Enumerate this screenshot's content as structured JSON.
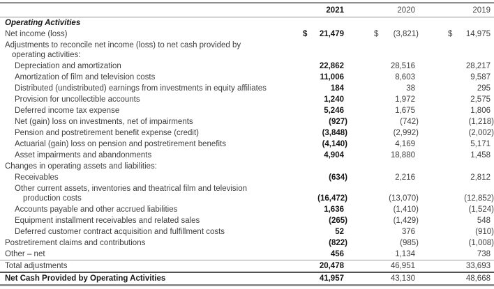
{
  "document": {
    "title": "Operating Activities section of consolidated statement of cash flows",
    "currency_symbol": "$",
    "colors": {
      "text": "#3e3e3e",
      "bold_text": "#161616",
      "rule_gray": "#8e8e8e",
      "rule_dark": "#525252",
      "background": "#ffffff"
    },
    "columns": [
      {
        "label": "2021",
        "bold": true
      },
      {
        "label": "2020",
        "bold": false
      },
      {
        "label": "2019",
        "bold": false
      }
    ],
    "rows": [
      {
        "name": "operating-activities-heading",
        "lines": [
          "Operating Activities"
        ],
        "indent": 0,
        "style": "section",
        "values": null
      },
      {
        "name": "net-income-row",
        "lines": [
          "Net income (loss)"
        ],
        "indent": 0,
        "dollar": true,
        "values": [
          "21,479",
          "(3,821)",
          "14,975"
        ]
      },
      {
        "name": "adjustments-heading",
        "lines": [
          "Adjustments to reconcile net income (loss) to net cash provided by",
          "operating activities:"
        ],
        "indent": 0,
        "values": null
      },
      {
        "lines": [
          "Depreciation and amortization"
        ],
        "indent": 1,
        "values": [
          "22,862",
          "28,516",
          "28,217"
        ]
      },
      {
        "lines": [
          "Amortization of film and television costs"
        ],
        "indent": 1,
        "values": [
          "11,006",
          "8,603",
          "9,587"
        ]
      },
      {
        "lines": [
          "Distributed (undistributed) earnings from investments in equity affiliates"
        ],
        "indent": 1,
        "values": [
          "184",
          "38",
          "295"
        ]
      },
      {
        "lines": [
          "Provision for uncollectible accounts"
        ],
        "indent": 1,
        "values": [
          "1,240",
          "1,972",
          "2,575"
        ]
      },
      {
        "lines": [
          "Deferred income tax expense"
        ],
        "indent": 1,
        "values": [
          "5,246",
          "1,675",
          "1,806"
        ]
      },
      {
        "lines": [
          "Net (gain) loss on investments, net of impairments"
        ],
        "indent": 1,
        "values": [
          "(927)",
          "(742)",
          "(1,218)"
        ]
      },
      {
        "lines": [
          "Pension and postretirement benefit expense (credit)"
        ],
        "indent": 1,
        "values": [
          "(3,848)",
          "(2,992)",
          "(2,002)"
        ]
      },
      {
        "lines": [
          "Actuarial (gain) loss on pension and postretirement benefits"
        ],
        "indent": 1,
        "values": [
          "(4,140)",
          "4,169",
          "5,171"
        ]
      },
      {
        "lines": [
          "Asset impairments and abandonments"
        ],
        "indent": 1,
        "values": [
          "4,904",
          "18,880",
          "1,458"
        ]
      },
      {
        "name": "changes-heading",
        "lines": [
          "Changes in operating assets and liabilities:"
        ],
        "indent": 0,
        "values": null
      },
      {
        "lines": [
          "Receivables"
        ],
        "indent": 1,
        "values": [
          "(634)",
          "2,216",
          "2,812"
        ]
      },
      {
        "lines": [
          "Other current assets, inventories and theatrical film and television",
          "production costs"
        ],
        "indent": 1,
        "values": [
          "(16,472)",
          "(13,070)",
          "(12,852)"
        ]
      },
      {
        "lines": [
          "Accounts payable and other accrued liabilities"
        ],
        "indent": 1,
        "values": [
          "1,636",
          "(1,410)",
          "(1,524)"
        ]
      },
      {
        "lines": [
          "Equipment installment receivables and related sales"
        ],
        "indent": 1,
        "values": [
          "(265)",
          "(1,429)",
          "548"
        ]
      },
      {
        "lines": [
          "Deferred customer contract acquisition and fulfillment costs"
        ],
        "indent": 1,
        "values": [
          "52",
          "376",
          "(910)"
        ]
      },
      {
        "lines": [
          "Postretirement claims and contributions"
        ],
        "indent": 0,
        "values": [
          "(822)",
          "(985)",
          "(1,008)"
        ]
      },
      {
        "lines": [
          "Other – net"
        ],
        "indent": 0,
        "values": [
          "456",
          "1,134",
          "738"
        ]
      },
      {
        "name": "total-adjustments-row",
        "lines": [
          "Total adjustments"
        ],
        "indent": 0,
        "border_top": "thin",
        "values": [
          "20,478",
          "46,951",
          "33,693"
        ]
      },
      {
        "name": "net-cash-operating-row",
        "lines": [
          "Net Cash Provided by Operating Activities"
        ],
        "indent": 0,
        "style": "total",
        "border_top": "dark",
        "border_bottom": "thick",
        "values": [
          "41,957",
          "43,130",
          "48,668"
        ]
      }
    ]
  }
}
